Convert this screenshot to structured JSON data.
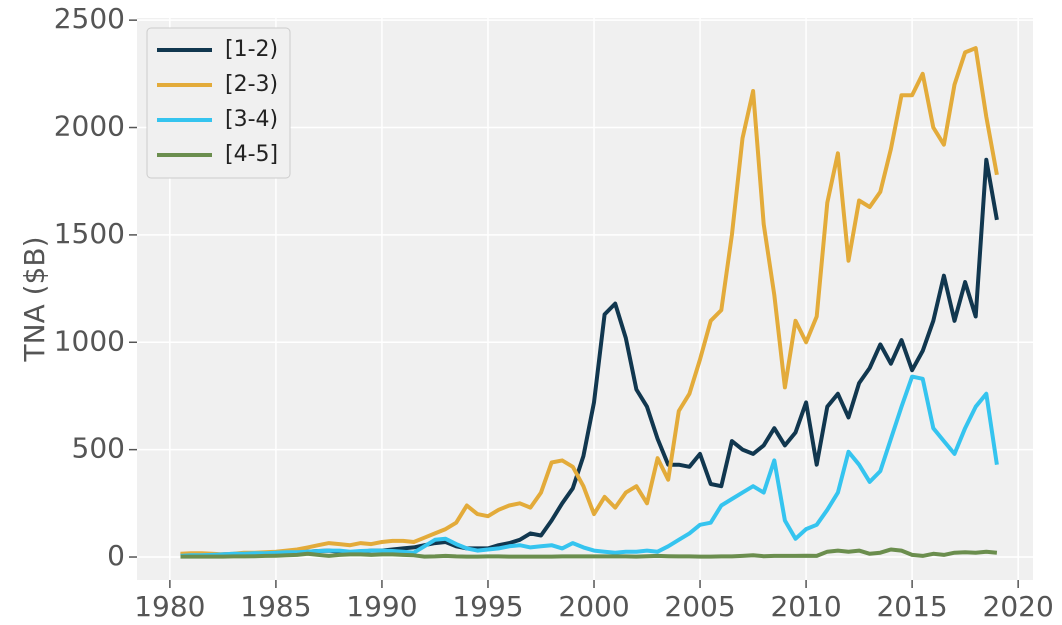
{
  "chart_data": {
    "type": "line",
    "ylabel": "TNA ($B)",
    "x": [
      1980.5,
      1981,
      1981.5,
      1982,
      1982.5,
      1983,
      1983.5,
      1984,
      1984.5,
      1985,
      1985.5,
      1986,
      1986.5,
      1987,
      1987.5,
      1988,
      1988.5,
      1989,
      1989.5,
      1990,
      1990.5,
      1991,
      1991.5,
      1992,
      1992.5,
      1993,
      1993.5,
      1994,
      1994.5,
      1995,
      1995.5,
      1996,
      1996.5,
      1997,
      1997.5,
      1998,
      1998.5,
      1999,
      1999.5,
      2000,
      2000.5,
      2001,
      2001.5,
      2002,
      2002.5,
      2003,
      2003.5,
      2004,
      2004.5,
      2005,
      2005.5,
      2006,
      2006.5,
      2007,
      2007.5,
      2008,
      2008.5,
      2009,
      2009.5,
      2010,
      2010.5,
      2011,
      2011.5,
      2012,
      2012.5,
      2013,
      2013.5,
      2014,
      2014.5,
      2015,
      2015.5,
      2016,
      2016.5,
      2017,
      2017.5,
      2018,
      2018.5,
      2019
    ],
    "series": [
      {
        "name": "[1-2)",
        "color": "#11374f",
        "values": [
          10,
          12,
          12,
          10,
          12,
          14,
          15,
          18,
          18,
          20,
          22,
          25,
          25,
          28,
          30,
          25,
          22,
          25,
          30,
          30,
          35,
          40,
          45,
          55,
          65,
          70,
          50,
          40,
          40,
          40,
          55,
          65,
          80,
          110,
          100,
          170,
          250,
          320,
          470,
          720,
          1130,
          1180,
          1020,
          780,
          700,
          550,
          430,
          430,
          420,
          480,
          340,
          330,
          540,
          500,
          480,
          520,
          600,
          520,
          580,
          720,
          430,
          700,
          760,
          650,
          810,
          880,
          990,
          900,
          1010,
          870,
          960,
          1100,
          1310,
          1100,
          1280,
          1120,
          1850,
          1570
        ]
      },
      {
        "name": "[2-3)",
        "color": "#e3ab3a",
        "values": [
          15,
          18,
          18,
          15,
          12,
          15,
          20,
          20,
          22,
          25,
          30,
          35,
          45,
          55,
          65,
          60,
          55,
          65,
          60,
          70,
          75,
          75,
          70,
          90,
          110,
          130,
          160,
          240,
          200,
          190,
          220,
          240,
          250,
          230,
          300,
          440,
          450,
          420,
          330,
          200,
          280,
          230,
          300,
          330,
          250,
          460,
          360,
          680,
          760,
          920,
          1100,
          1150,
          1500,
          1950,
          2170,
          1550,
          1220,
          790,
          1100,
          1000,
          1120,
          1650,
          1880,
          1380,
          1660,
          1630,
          1700,
          1900,
          2150,
          2150,
          2250,
          2000,
          1920,
          2200,
          2350,
          2370,
          2050,
          1780
        ]
      },
      {
        "name": "[3-4)",
        "color": "#35c4ef",
        "values": [
          5,
          8,
          8,
          10,
          12,
          15,
          15,
          18,
          18,
          20,
          22,
          22,
          25,
          28,
          30,
          30,
          25,
          28,
          30,
          30,
          28,
          25,
          20,
          50,
          80,
          85,
          60,
          40,
          30,
          35,
          40,
          50,
          55,
          45,
          50,
          55,
          40,
          65,
          45,
          30,
          25,
          20,
          25,
          25,
          30,
          25,
          50,
          80,
          110,
          150,
          160,
          240,
          270,
          300,
          330,
          300,
          450,
          170,
          85,
          130,
          150,
          220,
          300,
          490,
          430,
          350,
          400,
          550,
          700,
          840,
          830,
          600,
          540,
          480,
          600,
          700,
          760,
          430
        ]
      },
      {
        "name": "[4-5]",
        "color": "#6b8e4e",
        "values": [
          2,
          2,
          2,
          2,
          2,
          3,
          3,
          4,
          5,
          6,
          8,
          10,
          15,
          10,
          5,
          10,
          12,
          12,
          10,
          12,
          12,
          10,
          8,
          2,
          3,
          5,
          3,
          2,
          2,
          3,
          3,
          2,
          2,
          2,
          2,
          2,
          3,
          3,
          3,
          3,
          3,
          3,
          3,
          2,
          4,
          5,
          4,
          3,
          3,
          2,
          2,
          3,
          3,
          5,
          8,
          4,
          5,
          5,
          5,
          6,
          5,
          25,
          30,
          25,
          30,
          15,
          20,
          35,
          30,
          10,
          5,
          15,
          10,
          20,
          22,
          20,
          25,
          20
        ]
      }
    ],
    "xlim": [
      1978.45,
      2020.7
    ],
    "ylim": [
      -107,
      2510
    ],
    "xticks": [
      1980,
      1985,
      1990,
      1995,
      2000,
      2005,
      2010,
      2015,
      2020
    ],
    "yticks": [
      0,
      500,
      1000,
      1500,
      2000,
      2500
    ],
    "grid": true,
    "legend": "upper left"
  }
}
